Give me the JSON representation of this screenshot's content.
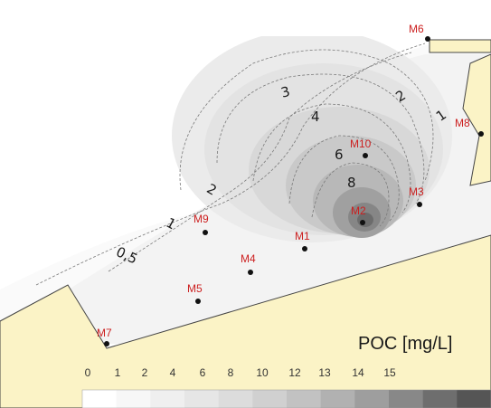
{
  "chart_data": {
    "type": "contour-map",
    "title": "",
    "unit_label": "POC [mg/L]",
    "legend_ticks": [
      "0",
      "1",
      "2",
      "4",
      "6",
      "8",
      "10",
      "12",
      "13",
      "14",
      "15"
    ],
    "legend_colors": [
      "#ffffff",
      "#f7f7f7",
      "#efefef",
      "#e6e6e6",
      "#dcdcdc",
      "#d0d0d0",
      "#c2c2c2",
      "#b1b1b1",
      "#9e9e9e",
      "#888888",
      "#6e6e6e",
      "#555555"
    ],
    "contour_levels": [
      {
        "level": 0.5,
        "label": "0,5"
      },
      {
        "level": 1,
        "label": "1"
      },
      {
        "level": 2,
        "label": "2"
      },
      {
        "level": 3,
        "label": "3"
      },
      {
        "level": 4,
        "label": "4"
      },
      {
        "level": 6,
        "label": "6"
      },
      {
        "level": 8,
        "label": "8"
      }
    ],
    "sampling_sites": [
      "M1",
      "M2",
      "M3",
      "M4",
      "M5",
      "M6",
      "M7",
      "M8",
      "M9",
      "M10"
    ]
  },
  "colors": {
    "land": "#fbf3c6",
    "land_edge": "#444444",
    "site_label": "#cc1f1f",
    "dot": "#111111",
    "top_strip": "#c8e2e0"
  }
}
